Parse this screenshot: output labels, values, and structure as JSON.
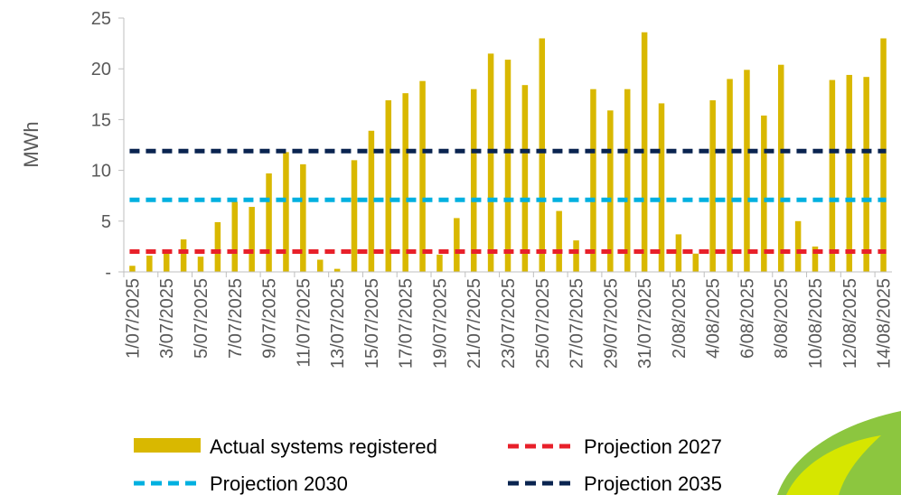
{
  "chart_data": {
    "type": "bar",
    "ylabel": "MWh",
    "ylim": [
      0,
      25
    ],
    "yticks": [
      0,
      5,
      10,
      15,
      20,
      25
    ],
    "ytick_labels": [
      "-",
      "5",
      "10",
      "15",
      "20",
      "25"
    ],
    "grid": false,
    "legend_position": "bottom",
    "categories": [
      "1/07/2025",
      "2/07/2025",
      "3/07/2025",
      "4/07/2025",
      "5/07/2025",
      "6/07/2025",
      "7/07/2025",
      "8/07/2025",
      "9/07/2025",
      "10/07/2025",
      "11/07/2025",
      "12/07/2025",
      "13/07/2025",
      "14/07/2025",
      "15/07/2025",
      "16/07/2025",
      "17/07/2025",
      "18/07/2025",
      "19/07/2025",
      "20/07/2025",
      "21/07/2025",
      "22/07/2025",
      "23/07/2025",
      "24/07/2025",
      "25/07/2025",
      "26/07/2025",
      "27/07/2025",
      "28/07/2025",
      "29/07/2025",
      "30/07/2025",
      "31/07/2025",
      "1/08/2025",
      "2/08/2025",
      "3/08/2025",
      "4/08/2025",
      "5/08/2025",
      "6/08/2025",
      "7/08/2025",
      "8/08/2025",
      "9/08/2025",
      "10/08/2025",
      "11/08/2025",
      "12/08/2025",
      "13/08/2025",
      "14/08/2025"
    ],
    "xtick_labels": [
      "1/07/2025",
      "3/07/2025",
      "5/07/2025",
      "7/07/2025",
      "9/07/2025",
      "11/07/2025",
      "13/07/2025",
      "15/07/2025",
      "17/07/2025",
      "19/07/2025",
      "21/07/2025",
      "23/07/2025",
      "25/07/2025",
      "27/07/2025",
      "29/07/2025",
      "31/07/2025",
      "2/08/2025",
      "4/08/2025",
      "6/08/2025",
      "8/08/2025",
      "10/08/2025",
      "12/08/2025",
      "14/08/2025"
    ],
    "series": [
      {
        "name": "Actual systems registered",
        "type": "bar",
        "color": "#d9b800",
        "values": [
          0.6,
          1.6,
          2.0,
          3.2,
          1.5,
          4.9,
          6.9,
          6.4,
          9.7,
          11.8,
          10.6,
          1.2,
          0.3,
          11.0,
          13.9,
          16.9,
          17.6,
          18.8,
          1.7,
          5.3,
          18.0,
          21.5,
          20.9,
          18.4,
          23.0,
          6.0,
          3.1,
          18.0,
          15.9,
          18.0,
          23.6,
          16.6,
          3.7,
          1.8,
          16.9,
          19.0,
          19.9,
          15.4,
          20.4,
          5.0,
          2.5,
          18.9,
          19.4,
          19.2,
          23.0
        ]
      },
      {
        "name": "Projection 2027",
        "type": "line",
        "style": "dashed",
        "color": "#e8202a",
        "value": 2.0
      },
      {
        "name": "Projection 2030",
        "type": "line",
        "style": "dashed",
        "color": "#00b0e0",
        "value": 7.1
      },
      {
        "name": "Projection 2035",
        "type": "line",
        "style": "dashed",
        "color": "#0a2450",
        "value": 11.9
      }
    ]
  }
}
